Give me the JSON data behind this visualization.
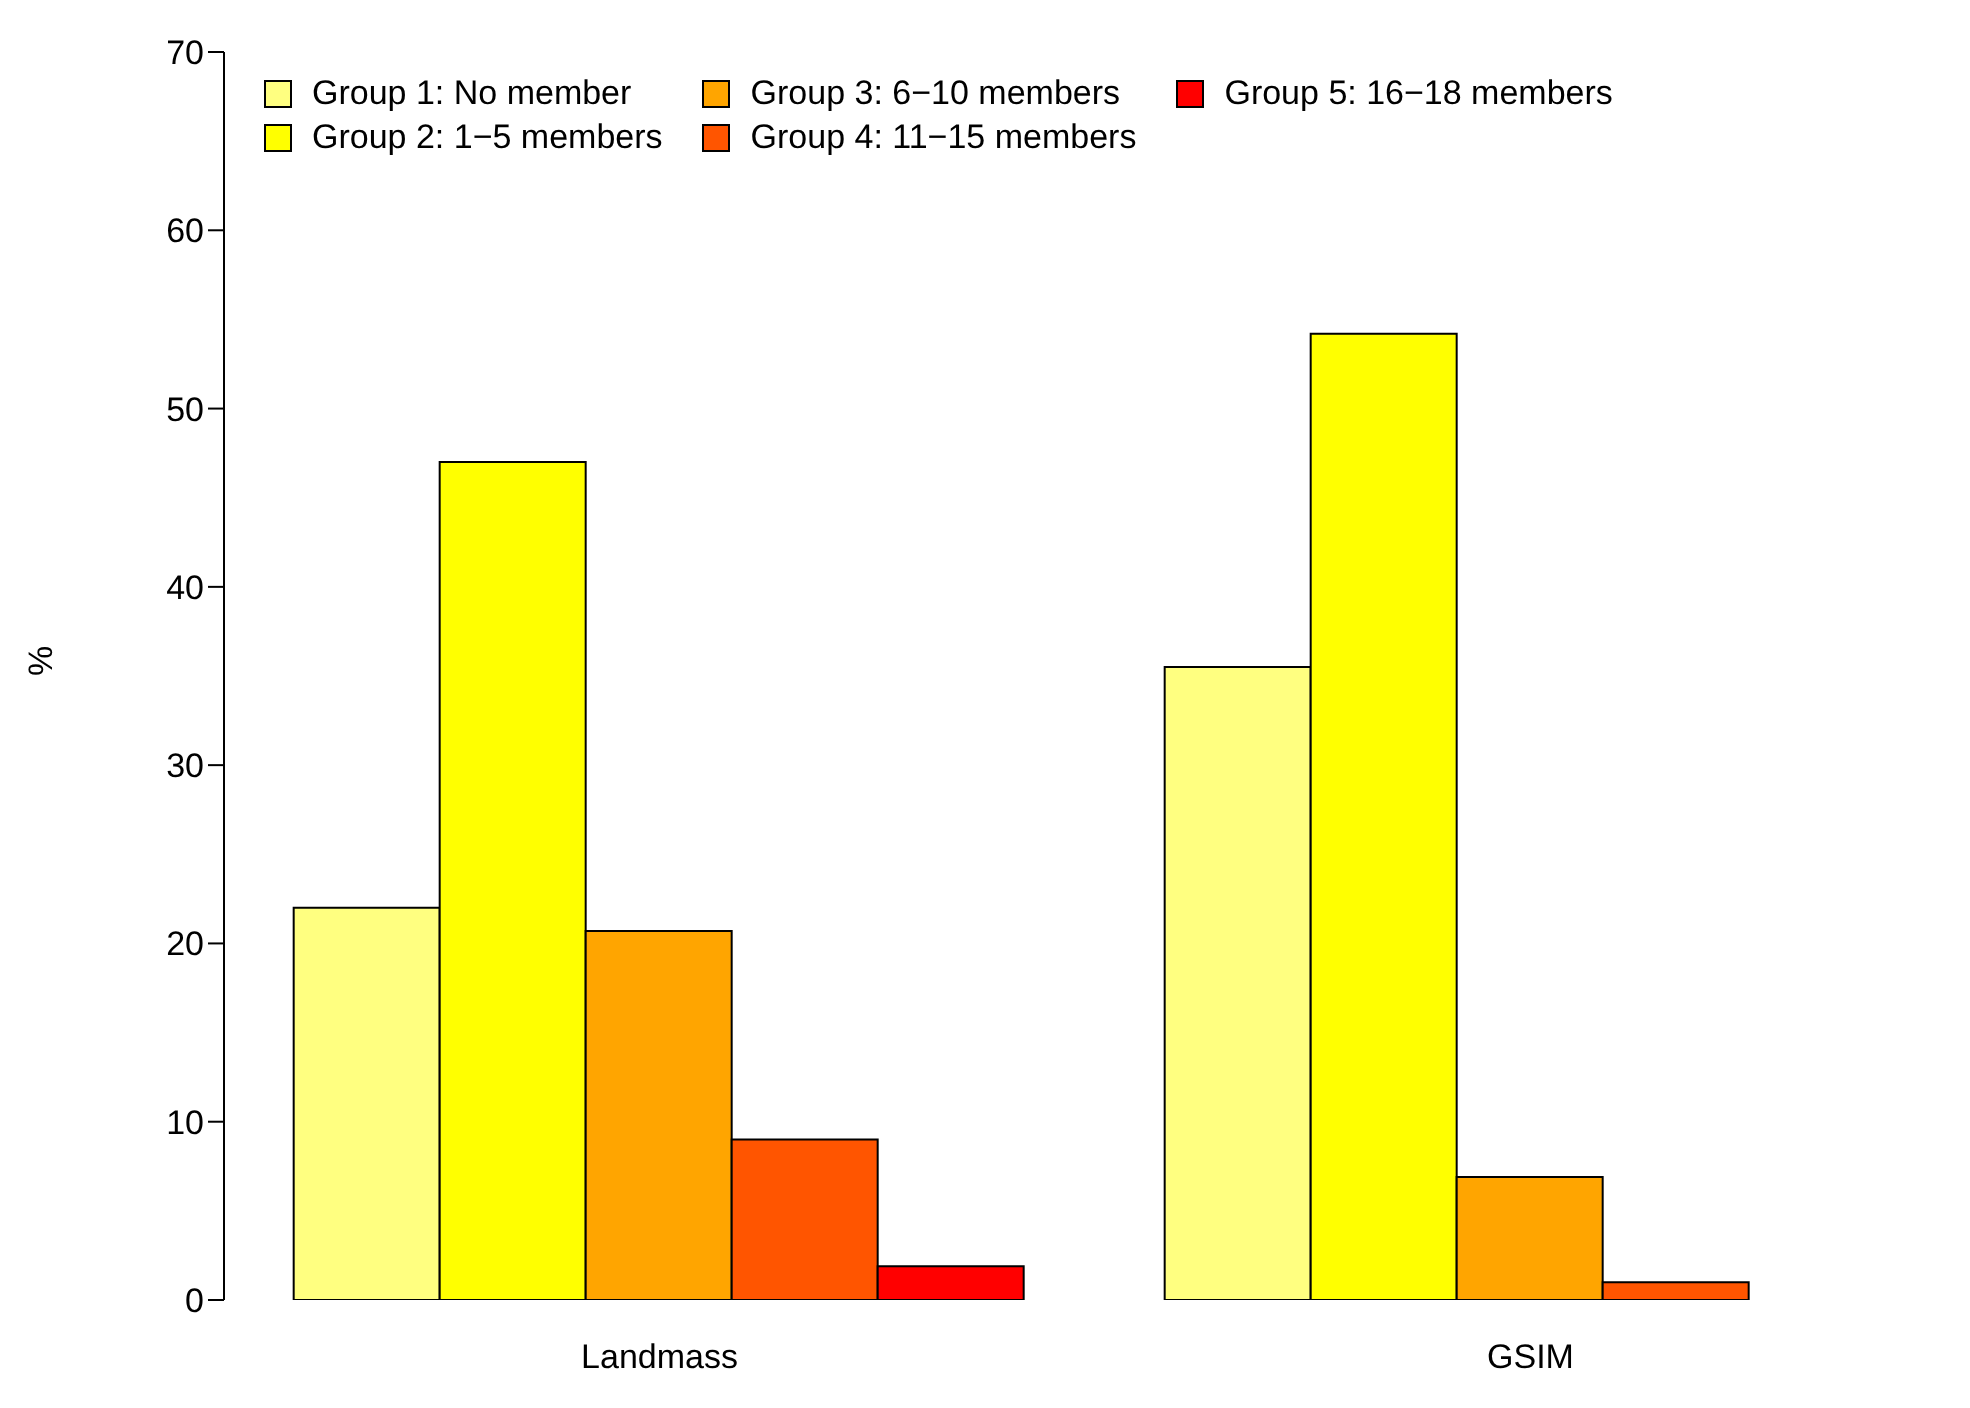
{
  "chart_data": {
    "type": "bar",
    "ylabel": "%",
    "categories": [
      "Landmass",
      "GSIM"
    ],
    "series": [
      {
        "name": "Group 1: No member",
        "color": "#ffff80",
        "values": [
          22.0,
          35.5
        ]
      },
      {
        "name": "Group 2: 1−5 members",
        "color": "#ffff00",
        "values": [
          47.0,
          54.2
        ]
      },
      {
        "name": "Group 3: 6−10 members",
        "color": "#ffa500",
        "values": [
          20.7,
          6.9
        ]
      },
      {
        "name": "Group 4: 11−15 members",
        "color": "#ff5500",
        "values": [
          9.0,
          1.0
        ]
      },
      {
        "name": "Group 5: 16−18 members",
        "color": "#ff0000",
        "values": [
          1.9,
          0
        ]
      }
    ],
    "ylim": [
      0,
      70
    ],
    "yticks": [
      0,
      10,
      20,
      30,
      40,
      50,
      60,
      70
    ],
    "grid": false,
    "legend": "top"
  }
}
